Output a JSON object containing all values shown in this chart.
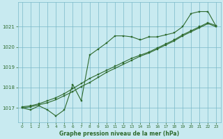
{
  "title": "Graphe pression niveau de la mer (hPa)",
  "bg_color": "#c8eaf0",
  "grid_color": "#7ab8c8",
  "line_color": "#2d6a2d",
  "xlim": [
    -0.5,
    23.5
  ],
  "ylim": [
    1016.3,
    1022.2
  ],
  "yticks": [
    1017,
    1018,
    1019,
    1020,
    1021
  ],
  "xticks": [
    0,
    1,
    2,
    3,
    4,
    5,
    6,
    7,
    8,
    9,
    10,
    11,
    12,
    13,
    14,
    15,
    16,
    17,
    18,
    19,
    20,
    21,
    22,
    23
  ],
  "series1_x": [
    0,
    1,
    2,
    3,
    4,
    5,
    6,
    7,
    8,
    9,
    10,
    11,
    12,
    13,
    14,
    15,
    16,
    17,
    18,
    19,
    20,
    21,
    22,
    23
  ],
  "series1_y": [
    1017.0,
    1016.9,
    1017.1,
    1016.9,
    1016.6,
    1016.9,
    1018.15,
    1017.35,
    1019.6,
    1019.9,
    1020.2,
    1020.55,
    1020.55,
    1020.5,
    1020.35,
    1020.5,
    1020.5,
    1020.6,
    1020.7,
    1021.0,
    1021.65,
    1021.75,
    1021.75,
    1021.0
  ],
  "series2_x": [
    0,
    1,
    2,
    3,
    4,
    5,
    6,
    7,
    8,
    9,
    10,
    11,
    12,
    13,
    14,
    15,
    16,
    17,
    18,
    19,
    20,
    21,
    22,
    23
  ],
  "series2_y": [
    1017.0,
    1017.05,
    1017.15,
    1017.25,
    1017.4,
    1017.6,
    1017.8,
    1018.05,
    1018.25,
    1018.5,
    1018.75,
    1018.95,
    1019.15,
    1019.35,
    1019.55,
    1019.7,
    1019.9,
    1020.1,
    1020.3,
    1020.55,
    1020.75,
    1020.95,
    1021.15,
    1021.0
  ],
  "series3_x": [
    0,
    1,
    2,
    3,
    4,
    5,
    6,
    7,
    8,
    9,
    10,
    11,
    12,
    13,
    14,
    15,
    16,
    17,
    18,
    19,
    20,
    21,
    22,
    23
  ],
  "series3_y": [
    1017.05,
    1017.1,
    1017.2,
    1017.35,
    1017.5,
    1017.7,
    1017.95,
    1018.2,
    1018.45,
    1018.65,
    1018.85,
    1019.05,
    1019.25,
    1019.45,
    1019.6,
    1019.75,
    1019.95,
    1020.15,
    1020.35,
    1020.6,
    1020.8,
    1021.0,
    1021.2,
    1021.05
  ]
}
